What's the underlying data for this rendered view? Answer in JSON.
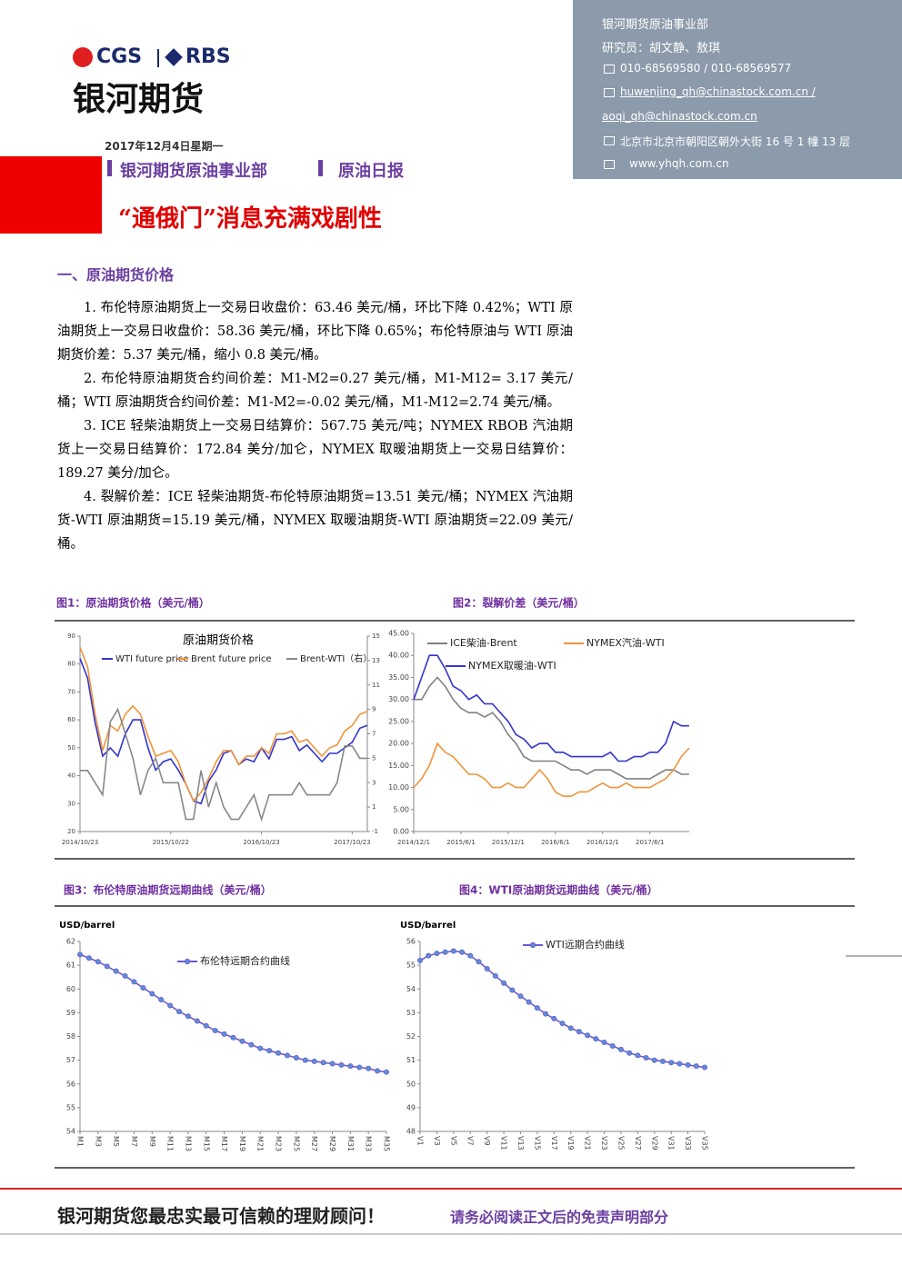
{
  "header": {
    "logo_left": "CGS",
    "logo_right": "RBS",
    "company": "银河期货",
    "date": "2017年12月4日星期一",
    "department": "银河期货原油事业部",
    "report": "原油日报",
    "headline": "“通俄门”消息充满戏剧性"
  },
  "contact": {
    "dept": "银河期货原油事业部",
    "analysts": "研究员：胡文静、敖琪",
    "phone": "010-68569580 / 010-68569577",
    "email_1": "huwenjing_qh@chinastock.com.cn /",
    "email_2": "aoqi_qh@chinastock.com.cn",
    "address": "北京市北京市朝阳区朝外大街 16 号 1 幢 13 层",
    "website": "www.yhqh.com.cn"
  },
  "section": {
    "heading": "一、原油期货价格",
    "paragraphs": [
      "1. 布伦特原油期货上一交易日收盘价：63.46 美元/桶，环比下降 0.42%；WTI 原油期货上一交易日收盘价：58.36 美元/桶，环比下降 0.65%；布伦特原油与 WTI 原油期货价差：5.37 美元/桶，缩小 0.8 美元/桶。",
      "2. 布伦特原油期货合约间价差：M1-M2=0.27 美元/桶，M1-M12= 3.17 美元/桶；WTI 原油期货合约间价差：M1-M2=-0.02 美元/桶，M1-M12=2.74 美元/桶。",
      "3. ICE 轻柴油期货上一交易日结算价：567.75 美元/吨；NYMEX RBOB 汽油期货上一交易日结算价：172.84 美分/加仑，NYMEX 取暖油期货上一交易日结算价：189.27 美分/加仑。",
      "4. 裂解价差：ICE 轻柴油期货-布伦特原油期货=13.51 美元/桶；NYMEX 汽油期货-WTI 原油期货=15.19 美元/桶，NYMEX 取暖油期货-WTI 原油期货=22.09 美元/桶。"
    ]
  },
  "chart_data": [
    {
      "type": "line",
      "caption": "图1：原油期货价格（美元/桶）",
      "title": "原油期货价格",
      "categories": [
        "2014/10/23",
        null,
        null,
        null,
        null,
        null,
        null,
        null,
        null,
        null,
        null,
        null,
        "2015/10/22",
        null,
        null,
        null,
        null,
        null,
        null,
        null,
        null,
        null,
        null,
        null,
        "2016/10/23",
        null,
        null,
        null,
        null,
        null,
        null,
        null,
        null,
        null,
        null,
        null,
        "2017/10/23",
        null,
        null
      ],
      "ylim": [
        20,
        90
      ],
      "yticks": [
        20,
        30,
        40,
        50,
        60,
        70,
        80,
        90
      ],
      "y2lim": [
        -1,
        15
      ],
      "y2ticks": [
        -1,
        1,
        3,
        5,
        7,
        9,
        11,
        13,
        15
      ],
      "series": [
        {
          "name": "WTI future price",
          "color": "#3333cc",
          "values": [
            82,
            75,
            59,
            47,
            50,
            47,
            55,
            60,
            60,
            50,
            42,
            45,
            46,
            42,
            37,
            31,
            30,
            38,
            42,
            48,
            49,
            44,
            46,
            45,
            50,
            46,
            53,
            53,
            54,
            49,
            51,
            48,
            45,
            48,
            48,
            50,
            52,
            57,
            58
          ]
        },
        {
          "name": "Brent future price",
          "color": "#f0943a",
          "values": [
            86,
            79,
            62,
            49,
            58,
            56,
            62,
            65,
            62,
            54,
            47,
            48,
            49,
            45,
            37,
            31,
            34,
            39,
            45,
            49,
            49,
            44,
            47,
            47,
            50,
            48,
            55,
            55,
            56,
            52,
            53,
            50,
            47,
            50,
            51,
            56,
            58,
            62,
            63
          ]
        },
        {
          "name": "Brent-WTI（右）",
          "color": "#888888",
          "axis": "y2",
          "values": [
            4,
            4,
            3,
            2,
            8,
            9,
            7,
            5,
            2,
            4,
            5,
            3,
            3,
            3,
            0,
            0,
            4,
            1,
            3,
            1,
            0,
            0,
            1,
            2,
            0,
            2,
            2,
            2,
            2,
            3,
            2,
            2,
            2,
            2,
            3,
            6,
            6,
            5,
            5
          ]
        }
      ]
    },
    {
      "type": "line",
      "caption": "图2：裂解价差（美元/桶）",
      "categories": [
        "2014/12/1",
        null,
        null,
        null,
        null,
        null,
        "2015/6/1",
        null,
        null,
        null,
        null,
        null,
        "2015/12/1",
        null,
        null,
        null,
        null,
        null,
        "2016/6/1",
        null,
        null,
        null,
        null,
        null,
        "2016/12/1",
        null,
        null,
        null,
        null,
        null,
        "2017/6/1",
        null,
        null,
        null,
        null,
        null
      ],
      "ylim": [
        0,
        45
      ],
      "yticks": [
        {
          "value": 0,
          "label": "0.00"
        },
        {
          "value": 5,
          "label": "5.00"
        },
        {
          "value": 10,
          "label": "10.00"
        },
        {
          "value": 15,
          "label": "15.00"
        },
        {
          "value": 20,
          "label": "20.00"
        },
        {
          "value": 25,
          "label": "25.00"
        },
        {
          "value": 30,
          "label": "30.00"
        },
        {
          "value": 35,
          "label": "35.00"
        },
        {
          "value": 40,
          "label": "40.00"
        },
        {
          "value": 45,
          "label": "45.00"
        }
      ],
      "series": [
        {
          "name": "ICE柴油-Brent",
          "color": "#808080",
          "values": [
            30,
            30,
            33,
            35,
            33,
            30,
            28,
            27,
            27,
            26,
            27,
            25,
            22,
            20,
            17,
            16,
            16,
            16,
            16,
            15,
            14,
            14,
            13,
            14,
            14,
            14,
            13,
            12,
            12,
            12,
            12,
            13,
            14,
            14,
            13,
            13
          ]
        },
        {
          "name": "NYMEX汽油-WTI",
          "color": "#f0943a",
          "values": [
            10,
            12,
            15,
            20,
            18,
            17,
            15,
            13,
            13,
            12,
            10,
            10,
            11,
            10,
            10,
            12,
            14,
            12,
            9,
            8,
            8,
            9,
            9,
            10,
            11,
            10,
            10,
            11,
            10,
            10,
            10,
            11,
            12,
            14,
            17,
            19
          ]
        },
        {
          "name": "NYMEX取暖油-WTI",
          "color": "#3333cc",
          "values": [
            30,
            35,
            40,
            40,
            37,
            33,
            32,
            30,
            31,
            29,
            29,
            27,
            25,
            22,
            21,
            19,
            20,
            20,
            18,
            18,
            17,
            17,
            17,
            17,
            17,
            18,
            16,
            16,
            17,
            17,
            18,
            18,
            20,
            25,
            24,
            24
          ]
        }
      ]
    },
    {
      "type": "line",
      "caption": "图3：布伦特原油期货远期曲线（美元/桶）",
      "ylabel": "USD/barrel",
      "categories": [
        "M1",
        null,
        "M3",
        null,
        "M5",
        null,
        "M7",
        null,
        "M9",
        null,
        "M11",
        null,
        "M13",
        null,
        "M15",
        null,
        "M17",
        null,
        "M19",
        null,
        "M21",
        null,
        "M23",
        null,
        "M25",
        null,
        "M27",
        null,
        "M29",
        null,
        "M31",
        null,
        "M33",
        null,
        "M35"
      ],
      "ylim": [
        54,
        62
      ],
      "yticks": [
        54,
        55,
        56,
        57,
        58,
        59,
        60,
        61,
        62
      ],
      "series": [
        {
          "name": "布伦特远期合约曲线",
          "color": "#6a5acd",
          "values": [
            61.45,
            61.3,
            61.15,
            60.95,
            60.75,
            60.55,
            60.3,
            60.05,
            59.8,
            59.55,
            59.3,
            59.05,
            58.85,
            58.65,
            58.45,
            58.25,
            58.1,
            57.95,
            57.8,
            57.65,
            57.5,
            57.4,
            57.3,
            57.2,
            57.1,
            57.0,
            56.95,
            56.9,
            56.85,
            56.8,
            56.75,
            56.7,
            56.65,
            56.55,
            56.5
          ]
        }
      ]
    },
    {
      "type": "line",
      "caption": "图4：WTI原油期货远期曲线（美元/桶）",
      "ylabel": "USD/barrel",
      "categories": [
        "V1",
        null,
        "V3",
        null,
        "V5",
        null,
        "V7",
        null,
        "V9",
        null,
        "V11",
        null,
        "V13",
        null,
        "V15",
        null,
        "V17",
        null,
        "V19",
        null,
        "V21",
        null,
        "V23",
        null,
        "V25",
        null,
        "V27",
        null,
        "V29",
        null,
        "V31",
        null,
        "V33",
        null,
        "V35"
      ],
      "ylim": [
        48,
        56
      ],
      "yticks": [
        48,
        49,
        50,
        51,
        52,
        53,
        54,
        55,
        56
      ],
      "series": [
        {
          "name": "WTI远期合约曲线",
          "color": "#6a5acd",
          "values": [
            55.2,
            55.4,
            55.5,
            55.55,
            55.6,
            55.55,
            55.4,
            55.15,
            54.85,
            54.55,
            54.25,
            53.95,
            53.7,
            53.45,
            53.2,
            52.95,
            52.75,
            52.55,
            52.35,
            52.2,
            52.05,
            51.9,
            51.75,
            51.6,
            51.45,
            51.3,
            51.2,
            51.1,
            51.0,
            50.95,
            50.9,
            50.85,
            50.8,
            50.75,
            50.7
          ]
        }
      ]
    }
  ],
  "footer": {
    "slogan": "银河期货您最忠实最可信赖的理财顾问！",
    "disclaimer": "请务必阅读正文后的免责声明部分"
  }
}
